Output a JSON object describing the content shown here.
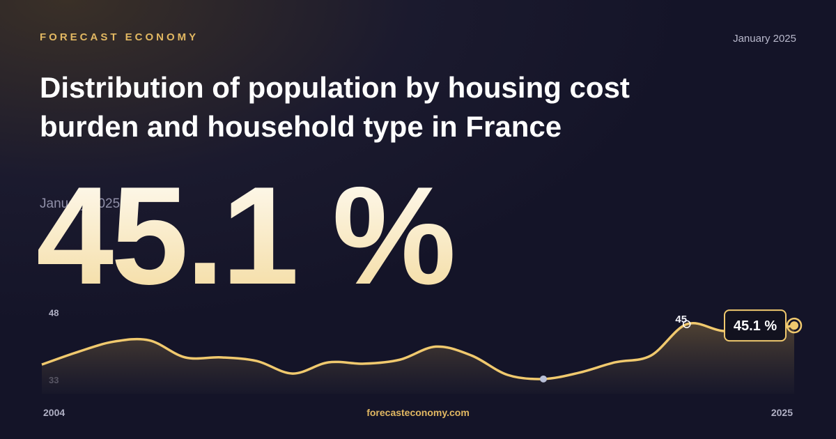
{
  "chart_data": {
    "type": "line",
    "brand": "FORECAST ECONOMY",
    "date": "January 2025",
    "title": "Distribution of population by housing cost burden and household type in France",
    "headline": "45.1 %",
    "x": [
      2004,
      2005,
      2006,
      2007,
      2008,
      2009,
      2010,
      2011,
      2012,
      2013,
      2014,
      2015,
      2016,
      2017,
      2018,
      2019,
      2020,
      2021,
      2022,
      2023,
      2024,
      2025
    ],
    "values": [
      36.4,
      39.2,
      41.5,
      41.8,
      38.0,
      38.0,
      37.2,
      34.4,
      36.9,
      36.6,
      37.5,
      40.4,
      38.4,
      34.1,
      33.2,
      34.6,
      36.9,
      38.4,
      45.4,
      43.9,
      43.9,
      45.1
    ],
    "value_labels": [
      null,
      null,
      null,
      null,
      null,
      null,
      null,
      null,
      null,
      null,
      null,
      null,
      null,
      null,
      null,
      null,
      null,
      null,
      "45",
      null,
      null,
      "45.1 %"
    ],
    "color": "#f0c96e",
    "xlim": [
      2004,
      2025
    ],
    "xticks": [
      2004,
      2025
    ],
    "ylim": [
      31,
      49
    ],
    "yticks": [
      33,
      48
    ],
    "source": "forecasteconomy.com"
  }
}
